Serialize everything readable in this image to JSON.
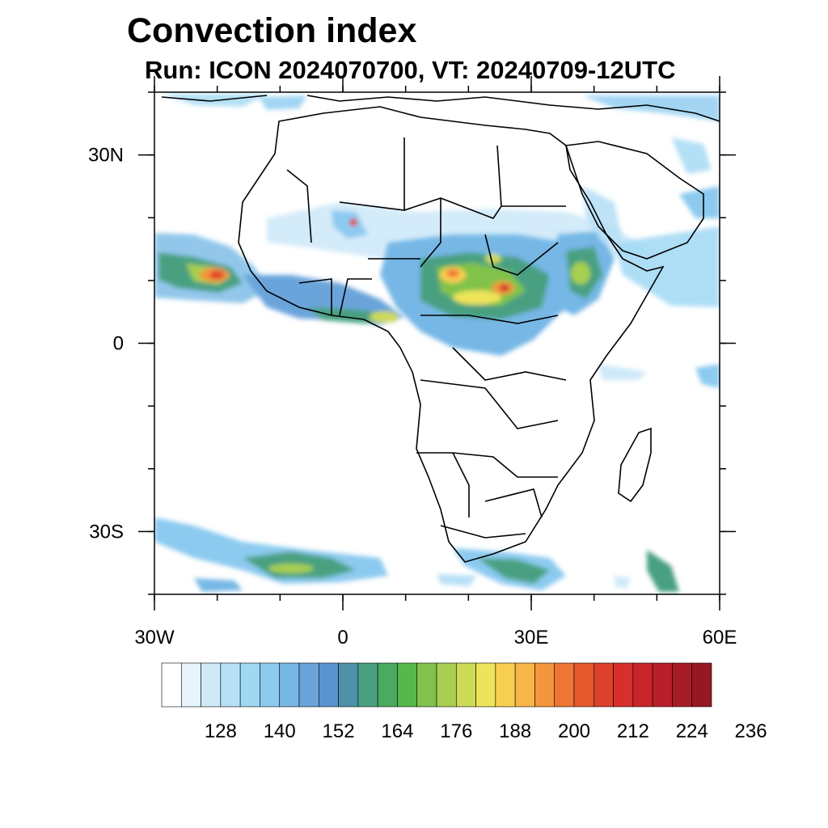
{
  "header": {
    "title": "Convection index",
    "subtitle": "Run: ICON 2024070700,  VT: 20240709-12UTC"
  },
  "map": {
    "lon_range": [
      -30,
      60
    ],
    "lat_range": [
      -40,
      40
    ],
    "lat_ticks": [
      {
        "value": 30,
        "label": "30N"
      },
      {
        "value": 0,
        "label": "0"
      },
      {
        "value": -30,
        "label": "30S"
      }
    ],
    "lon_ticks": [
      {
        "value": -30,
        "label": "30W"
      },
      {
        "value": 0,
        "label": "0"
      },
      {
        "value": 30,
        "label": "30E"
      },
      {
        "value": 60,
        "label": "60E"
      }
    ],
    "regions": [
      {
        "name": "West Atlantic tropical band",
        "intensity": 0.55
      },
      {
        "name": "Cape Verde core",
        "intensity": 0.95
      },
      {
        "name": "Sahel band",
        "intensity": 0.45
      },
      {
        "name": "Central African core",
        "intensity": 0.85
      },
      {
        "name": "Ethiopian highlands",
        "intensity": 0.6
      },
      {
        "name": "South Atlantic front",
        "intensity": 0.5
      },
      {
        "name": "Southern Africa front",
        "intensity": 0.45
      }
    ]
  },
  "colorbar": {
    "colors": [
      "#ffffff",
      "#e8f4fb",
      "#cfe9f8",
      "#b7e0f6",
      "#a0d8f4",
      "#8ccaf0",
      "#76b7e6",
      "#6aa4db",
      "#5a93cf",
      "#4d92a8",
      "#49a081",
      "#4aab60",
      "#56b84a",
      "#81c24b",
      "#a8cf50",
      "#cddb56",
      "#ede45a",
      "#f9cf52",
      "#f8b648",
      "#f4963b",
      "#ee7533",
      "#e55a2d",
      "#dd402b",
      "#d5302b",
      "#c8252b",
      "#b81f2a",
      "#a71b27",
      "#961823"
    ],
    "labels": [
      "128",
      "140",
      "152",
      "164",
      "176",
      "188",
      "200",
      "212",
      "224",
      "236"
    ]
  }
}
